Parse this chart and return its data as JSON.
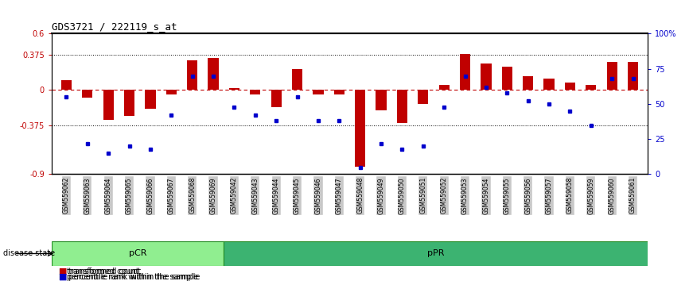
{
  "title": "GDS3721 / 222119_s_at",
  "samples": [
    "GSM559062",
    "GSM559063",
    "GSM559064",
    "GSM559065",
    "GSM559066",
    "GSM559067",
    "GSM559068",
    "GSM559069",
    "GSM559042",
    "GSM559043",
    "GSM559044",
    "GSM559045",
    "GSM559046",
    "GSM559047",
    "GSM559048",
    "GSM559049",
    "GSM559050",
    "GSM559051",
    "GSM559052",
    "GSM559053",
    "GSM559054",
    "GSM559055",
    "GSM559056",
    "GSM559057",
    "GSM559058",
    "GSM559059",
    "GSM559060",
    "GSM559061"
  ],
  "transformed_count": [
    0.1,
    -0.08,
    -0.32,
    -0.28,
    -0.2,
    -0.05,
    0.32,
    0.34,
    0.02,
    -0.05,
    -0.18,
    0.22,
    -0.05,
    -0.05,
    -0.82,
    -0.22,
    -0.35,
    -0.15,
    0.05,
    0.38,
    0.28,
    0.25,
    0.15,
    0.12,
    0.08,
    0.05,
    0.3,
    0.3
  ],
  "percentile_rank": [
    55,
    22,
    15,
    20,
    18,
    42,
    70,
    70,
    48,
    42,
    38,
    55,
    38,
    38,
    5,
    22,
    18,
    20,
    48,
    70,
    62,
    58,
    52,
    50,
    45,
    35,
    68,
    68
  ],
  "bar_color": "#c00000",
  "dot_color": "#0000cc",
  "pCR_count": 8,
  "pPR_count": 20,
  "ylim_left": [
    -0.9,
    0.6
  ],
  "yticks_left": [
    -0.9,
    -0.375,
    0.0,
    0.375,
    0.6
  ],
  "ytick_labels_left": [
    "-0.9",
    "-0.375",
    "0",
    "0.375",
    "0.6"
  ],
  "ylim_right": [
    0,
    100
  ],
  "yticks_right": [
    0,
    25,
    50,
    75,
    100
  ],
  "ytick_labels_right": [
    "0",
    "25",
    "50",
    "75",
    "100%"
  ],
  "hline_y": [
    0.375,
    -0.375
  ],
  "zero_line_color": "#c00000",
  "dotted_color": "black",
  "bg_color": "white",
  "pCR_color": "#90ee90",
  "pPR_color": "#3cb371",
  "label_transformed": "transformed count",
  "label_percentile": "percentile rank within the sample",
  "disease_state_label": "disease state",
  "bar_width": 0.5,
  "tick_bg_color": "#c8c8c8"
}
